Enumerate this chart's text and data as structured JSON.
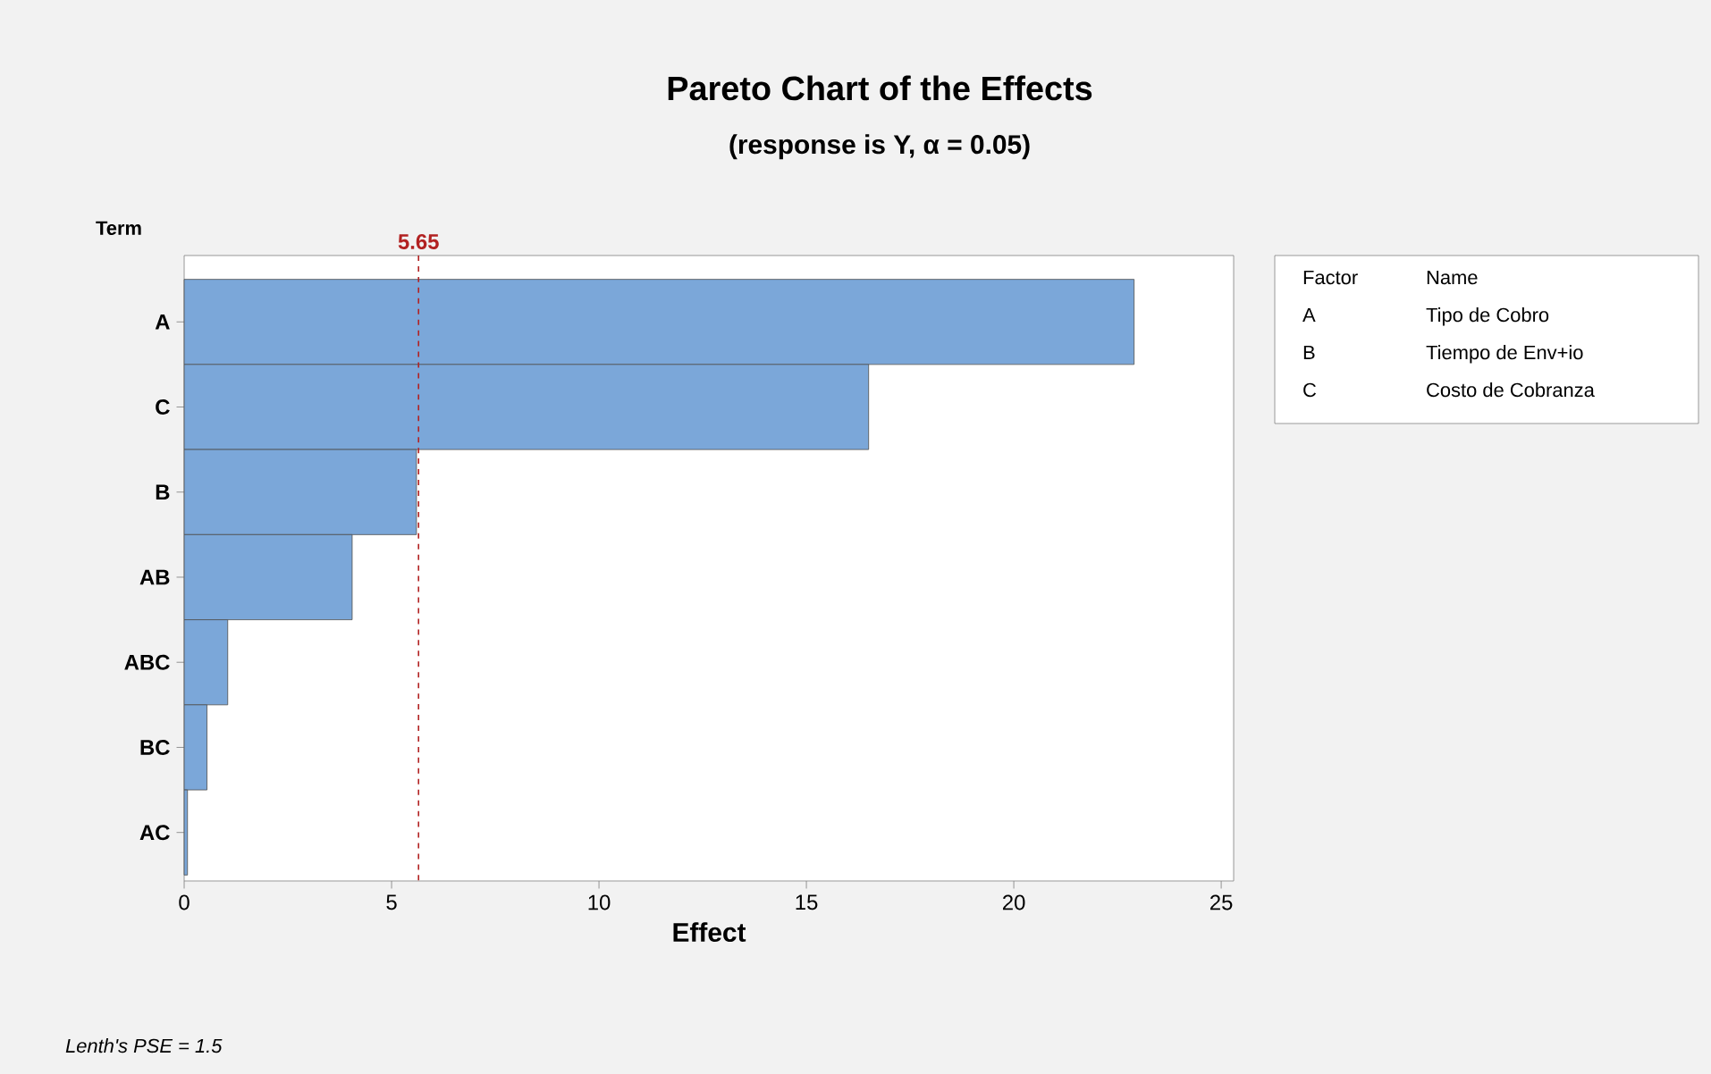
{
  "chart_data": {
    "type": "bar",
    "orientation": "horizontal",
    "title": "Pareto Chart of the Effects",
    "subtitle": "(response is Y, α = 0.05)",
    "xlabel": "Effect",
    "ylabel": "Term",
    "categories": [
      "A",
      "C",
      "B",
      "AB",
      "ABC",
      "BC",
      "AC"
    ],
    "values": [
      22.9,
      16.5,
      5.6,
      4.05,
      1.05,
      0.55,
      0.08
    ],
    "color": "#7ba7d9",
    "xlim": [
      0,
      25.3
    ],
    "xticks": [
      0,
      5,
      10,
      15,
      20,
      25
    ],
    "grid": false,
    "ref_lines": [
      {
        "axis": "x",
        "value": 5.65,
        "label": "5.65",
        "color": "#b22222",
        "line_style": "dashed"
      }
    ],
    "annotations": [
      "*Lenth's PSE = 1.5*",
      "Factor",
      "Name",
      "A",
      "Tipo de Cobro",
      "B",
      "Tiempo de Env+io",
      "C",
      "Costo de Cobranza"
    ]
  }
}
